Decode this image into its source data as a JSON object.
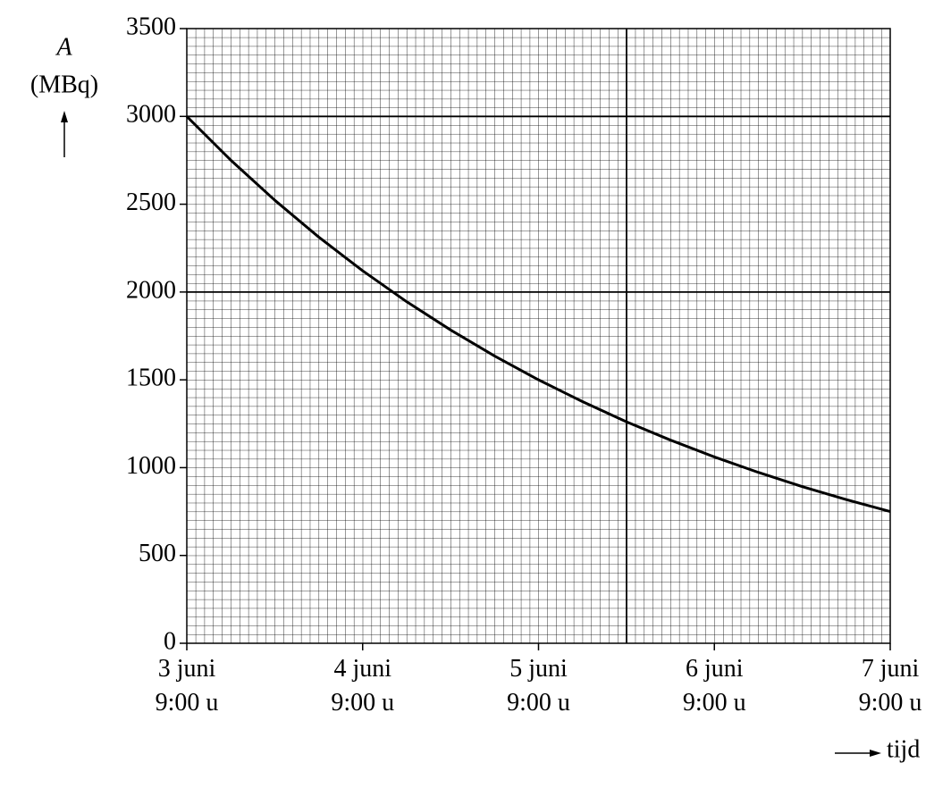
{
  "chart_data": {
    "type": "line",
    "x_label": "tijd",
    "y_label": "A",
    "y_unit": "(MBq)",
    "x": [
      0,
      6,
      12,
      18,
      24,
      30,
      36,
      42,
      48,
      54,
      60,
      66,
      72,
      78,
      84,
      90,
      96
    ],
    "series": [
      {
        "color": "#000000",
        "values": [
          3000,
          2751,
          2523,
          2313,
          2121,
          1945,
          1784,
          1636,
          1500,
          1376,
          1261,
          1157,
          1061,
          973,
          892,
          818,
          750
        ]
      }
    ],
    "xlim": [
      0,
      96
    ],
    "xticks": [
      {
        "value": 0,
        "label": "3 juni\n9:00 u"
      },
      {
        "value": 24,
        "label": "4 juni\n9:00 u"
      },
      {
        "value": 48,
        "label": "5 juni\n9:00 u"
      },
      {
        "value": 72,
        "label": "6 juni\n9:00 u"
      },
      {
        "value": 96,
        "label": "7 juni\n9:00 u"
      }
    ],
    "ylim": [
      0,
      3500
    ],
    "yticks": [
      0,
      500,
      1000,
      1500,
      2000,
      2500,
      3000,
      3500
    ],
    "grid": true
  }
}
